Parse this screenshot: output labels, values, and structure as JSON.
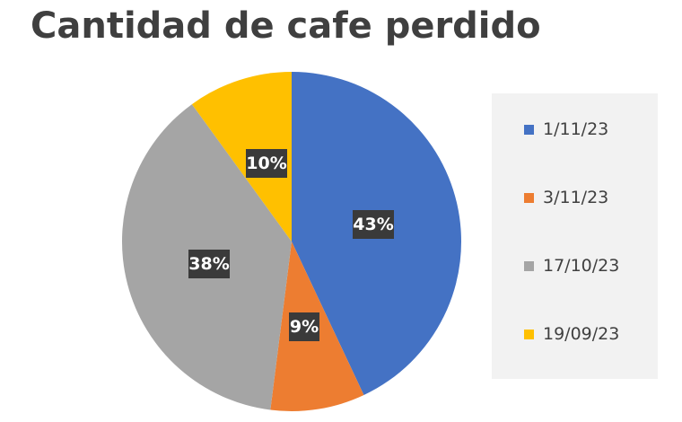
{
  "chart_data": {
    "type": "pie",
    "title": "Cantidad de cafe perdido",
    "categories": [
      "1/11/23",
      "3/11/23",
      "17/10/23",
      "19/09/23"
    ],
    "values": [
      43,
      9,
      38,
      10
    ],
    "data_labels": [
      "43%",
      "9%",
      "38%",
      "10%"
    ],
    "colors": [
      "#4472C4",
      "#ED7D31",
      "#A5A5A5",
      "#FFC000"
    ],
    "legend_position": "right",
    "start_angle": "12 o'clock",
    "direction": "clockwise"
  }
}
